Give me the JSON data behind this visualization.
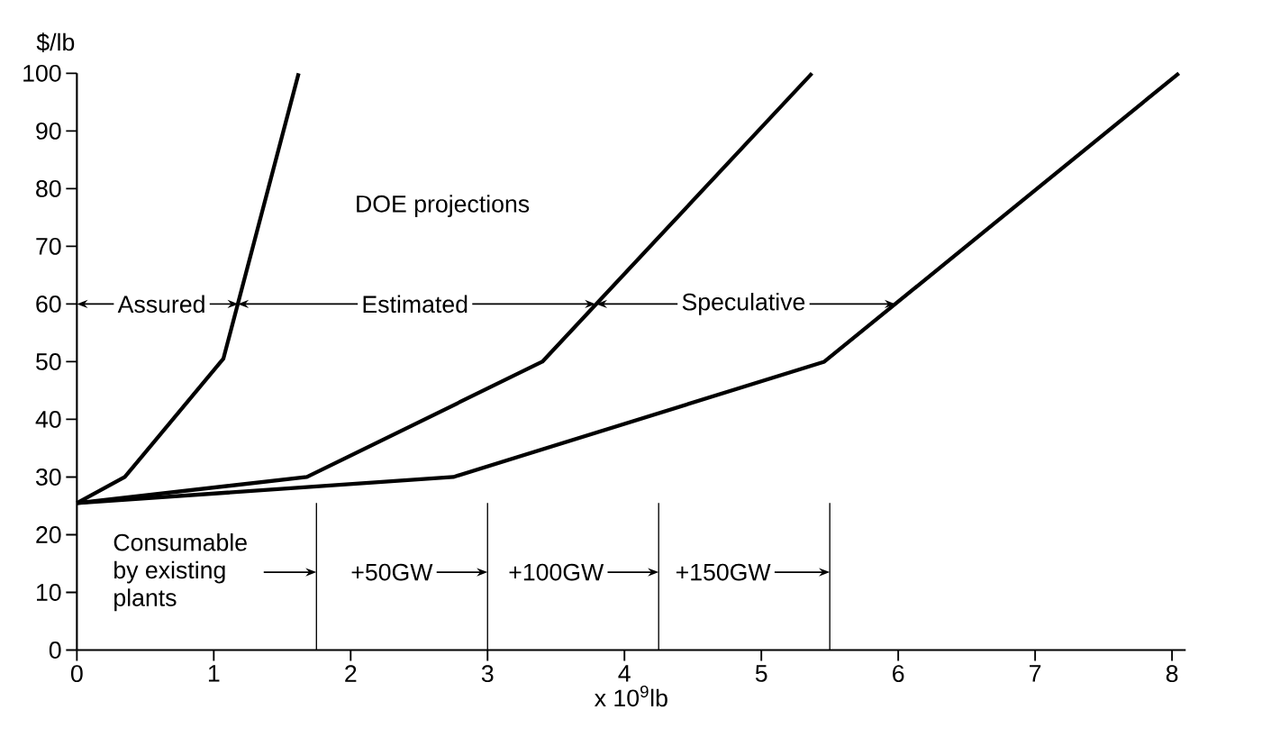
{
  "chart_data": {
    "type": "line",
    "xlabel": "x 10$^{9}$lb",
    "ylabel": "$/lb",
    "xlim": [
      0,
      8.1
    ],
    "ylim": [
      0,
      100
    ],
    "xticks": [
      0,
      1,
      2,
      3,
      4,
      5,
      6,
      7,
      8
    ],
    "yticks": [
      0,
      10,
      20,
      30,
      40,
      50,
      60,
      70,
      80,
      90,
      100
    ],
    "marker": "none",
    "line_style": "solid",
    "grid": false,
    "legend": false,
    "series": [
      {
        "color": "#000000",
        "x": [
          0,
          0.35,
          1.07,
          1.62
        ],
        "values": [
          25.5,
          30,
          50.5,
          100
        ]
      },
      {
        "color": "#000000",
        "x": [
          0,
          1.68,
          3.4,
          5.37
        ],
        "values": [
          25.5,
          30,
          50,
          100
        ]
      },
      {
        "color": "#000000",
        "x": [
          0,
          2.75,
          5.46,
          8.05
        ],
        "values": [
          25.5,
          30,
          50,
          100
        ]
      }
    ],
    "ref_lines": [
      {
        "axis": "x",
        "value": 1.75
      },
      {
        "axis": "x",
        "value": 3
      },
      {
        "axis": "x",
        "value": 4.25
      },
      {
        "axis": "x",
        "value": 5.5
      }
    ],
    "annotations": [
      "DOE projections",
      {
        "text": "Assured",
        "x": 1.18,
        "y": 60
      },
      {
        "text": "Estimated",
        "x": 3.79,
        "y": 60
      },
      {
        "text": "Speculative",
        "x": 5.98,
        "y": 60
      },
      "Consumable by existing plants",
      "+50GW",
      "+100GW",
      "+150GW"
    ]
  }
}
